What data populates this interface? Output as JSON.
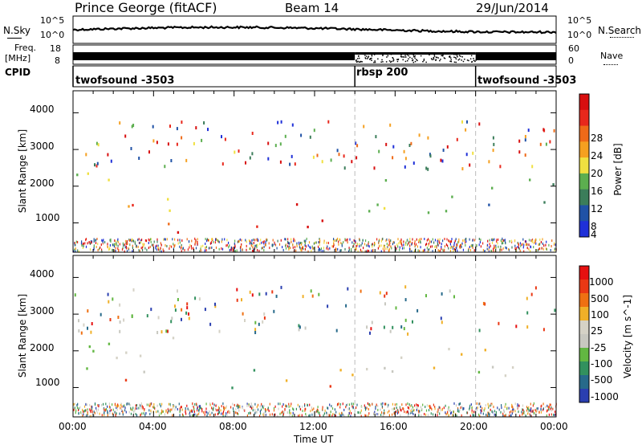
{
  "header": {
    "station": "Prince George (fitACF)",
    "beam": "Beam 14",
    "date": "29/Jun/2014"
  },
  "top_panels": {
    "nsky_label": "N.Sky",
    "nsky_ticks": [
      "10^5",
      "10^0"
    ],
    "nsearch_label": "N.Search",
    "nsearch_ticks": [
      "10^5",
      "10^0"
    ],
    "freq_label": "Freq.",
    "freq_unit": "[MHz]",
    "freq_ticks": [
      "18",
      "8"
    ],
    "nave_label": "Nave",
    "nave_ticks": [
      "60",
      "0"
    ],
    "cpid_label": "CPID"
  },
  "cpid_segments": [
    {
      "name": "twofsound -3503",
      "start_hour": 0.0,
      "end_hour": 14.0
    },
    {
      "name": "rbsp 200",
      "start_hour": 14.0,
      "end_hour": 20.0
    },
    {
      "name": "twofsound -3503",
      "start_hour": 20.0,
      "end_hour": 24.0
    }
  ],
  "colors": {
    "power": [
      "#1f30d8",
      "#2052a6",
      "#3b7d5a",
      "#5cae4f",
      "#f0e040",
      "#f5a020",
      "#ef6a18",
      "#e8281c",
      "#d80f0f"
    ],
    "velocity": [
      "#2a3fb0",
      "#276a8a",
      "#32915e",
      "#62b742",
      "#c8c8c0",
      "#d5d2c6",
      "#f0b028",
      "#ef7012",
      "#ea3814",
      "#e61010"
    ]
  },
  "chart_data": [
    {
      "type": "heatmap",
      "name": "power-panel",
      "ylabel": "Slant Range [km]",
      "yticks": [
        "4000",
        "3000",
        "2000",
        "1000"
      ],
      "ylim": [
        200,
        4600
      ],
      "xlim": [
        0,
        24
      ],
      "colorbar_label": "Power [dB]",
      "colorbar_ticks": [
        "28",
        "24",
        "20",
        "16",
        "12",
        "8",
        "4"
      ],
      "scatter_bands": [
        {
          "t0": 0,
          "t1": 2,
          "r0": 1100,
          "r1": 2600,
          "level": 4
        },
        {
          "t0": 1,
          "t1": 3,
          "r0": 1300,
          "r1": 2000,
          "level": 6
        },
        {
          "t0": 2.5,
          "t1": 5.5,
          "r0": 1200,
          "r1": 1900,
          "level": 5
        },
        {
          "t0": 3.5,
          "t1": 7,
          "r0": 600,
          "r1": 1200,
          "level": 7
        },
        {
          "t0": 8.5,
          "t1": 14,
          "r0": 900,
          "r1": 1600,
          "level": 8
        },
        {
          "t0": 14,
          "t1": 19,
          "r0": 1200,
          "r1": 2400,
          "level": 3
        },
        {
          "t0": 20,
          "t1": 24,
          "r0": 1300,
          "r1": 2500,
          "level": 2
        }
      ]
    },
    {
      "type": "heatmap",
      "name": "velocity-panel",
      "ylabel": "Slant Range [km]",
      "yticks": [
        "4000",
        "3000",
        "2000",
        "1000"
      ],
      "ylim": [
        200,
        4600
      ],
      "xlim": [
        0,
        24
      ],
      "colorbar_label": "Velocity [m s^-1]",
      "colorbar_ticks": [
        "1000",
        "500",
        "100",
        "25",
        "-25",
        "-100",
        "-500",
        "-1000"
      ],
      "xticks": [
        "00:00",
        "04:00",
        "08:00",
        "12:00",
        "16:00",
        "20:00",
        "00:00"
      ],
      "xlabel": "Time UT",
      "scatter_bands": [
        {
          "t0": 0,
          "t1": 6,
          "r0": 1200,
          "r1": 2600,
          "level": 4
        },
        {
          "t0": 2,
          "t1": 3.5,
          "r0": 1100,
          "r1": 1500,
          "level": 7
        },
        {
          "t0": 6.5,
          "t1": 9,
          "r0": 1000,
          "r1": 1800,
          "level": 3
        },
        {
          "t0": 9,
          "t1": 14,
          "r0": 1000,
          "r1": 1700,
          "level": 7
        },
        {
          "t0": 14,
          "t1": 21,
          "r0": 1400,
          "r1": 2400,
          "level": 5
        },
        {
          "t0": 20,
          "t1": 24,
          "r0": 1200,
          "r1": 2000,
          "level": 4
        }
      ]
    }
  ]
}
